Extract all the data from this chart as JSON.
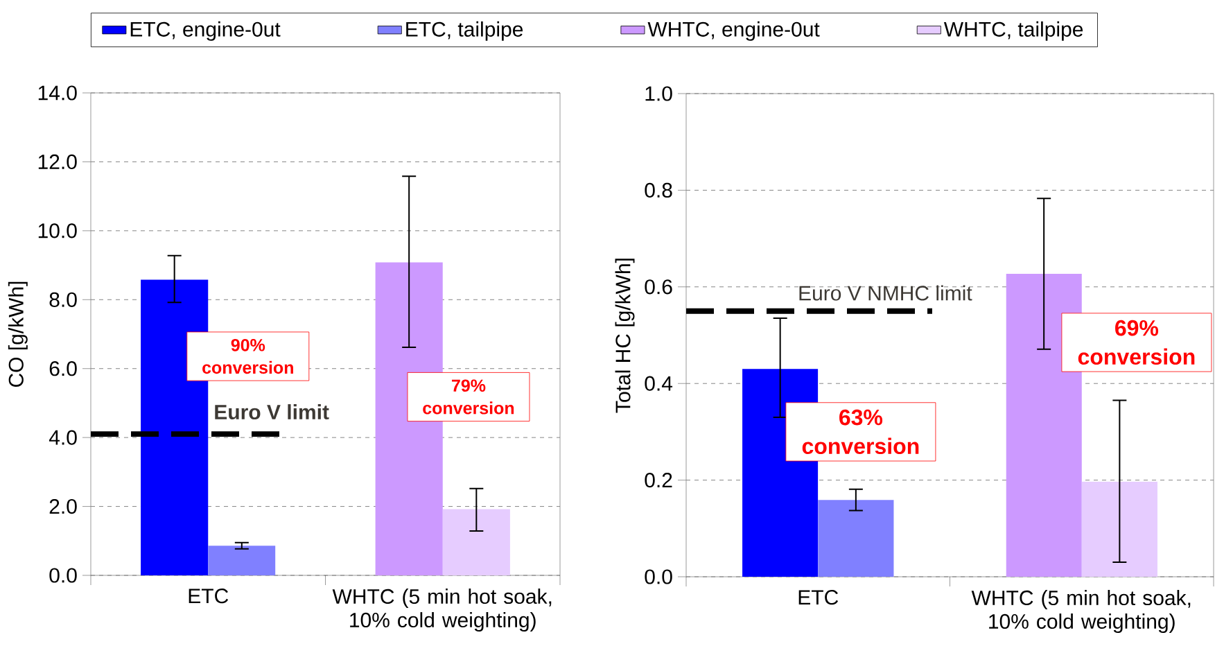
{
  "chart_data": [
    {
      "type": "bar",
      "categories": [
        "ETC",
        "WHTC (5 min hot soak, 10% cold weighting)"
      ],
      "ylabel": "CO [g/kWh]",
      "series": [
        {
          "name": "ETC, engine-0ut",
          "color": "#0000ff",
          "values": [
            8.58,
            null
          ],
          "errors": [
            [
              7.92,
              9.28
            ],
            null
          ]
        },
        {
          "name": "ETC, tailpipe",
          "color": "#8080ff",
          "values": [
            0.86,
            null
          ],
          "errors": [
            [
              0.77,
              0.95
            ],
            null
          ]
        },
        {
          "name": "WHTC, engine-0ut",
          "color": "#cc99ff",
          "values": [
            null,
            9.08
          ],
          "errors": [
            null,
            [
              6.62,
              11.58
            ]
          ]
        },
        {
          "name": "WHTC, tailpipe",
          "color": "#e6ccff",
          "values": [
            null,
            1.92
          ],
          "errors": [
            null,
            [
              1.29,
              2.52
            ]
          ]
        }
      ],
      "ylim": [
        0,
        14
      ],
      "yticks": [
        {
          "value": 0,
          "label": "0.0"
        },
        {
          "value": 2,
          "label": "2.0"
        },
        {
          "value": 4,
          "label": "4.0"
        },
        {
          "value": 6,
          "label": "6.0"
        },
        {
          "value": 8,
          "label": "8.0"
        },
        {
          "value": 10,
          "label": "10.0"
        },
        {
          "value": 12,
          "label": "12.0"
        },
        {
          "value": 14,
          "label": "14.0"
        }
      ],
      "grid": "y",
      "legend": "top",
      "ref_lines": [
        {
          "axis": "y",
          "value": 4.1,
          "label": "Euro V limit",
          "color": "#000000",
          "line_style": "dashed"
        }
      ],
      "annotations": [
        "90% conversion",
        "79% conversion"
      ]
    },
    {
      "type": "bar",
      "categories": [
        "ETC",
        "WHTC (5 min hot soak, 10% cold weighting)"
      ],
      "ylabel": "Total HC [g/kWh]",
      "series": [
        {
          "color": "#0000ff",
          "values": [
            0.43,
            null
          ],
          "errors": [
            [
              0.33,
              0.535
            ],
            null
          ]
        },
        {
          "color": "#8080ff",
          "values": [
            0.159,
            null
          ],
          "errors": [
            [
              0.137,
              0.181
            ],
            null
          ]
        },
        {
          "color": "#cc99ff",
          "values": [
            null,
            0.627
          ],
          "errors": [
            null,
            [
              0.471,
              0.783
            ]
          ]
        },
        {
          "color": "#e6ccff",
          "values": [
            null,
            0.197
          ],
          "errors": [
            null,
            [
              0.03,
              0.365
            ]
          ]
        }
      ],
      "ylim": [
        0,
        1
      ],
      "yticks": [
        {
          "value": 0,
          "label": "0.0"
        },
        {
          "value": 0.2,
          "label": "0.2"
        },
        {
          "value": 0.4,
          "label": "0.4"
        },
        {
          "value": 0.6,
          "label": "0.6"
        },
        {
          "value": 0.8,
          "label": "0.8"
        },
        {
          "value": 1,
          "label": "1.0"
        }
      ],
      "grid": "y",
      "ref_lines": [
        {
          "axis": "y",
          "value": 0.55,
          "label": "Euro V NMHC limit",
          "color": "#000000",
          "line_style": "dashed"
        }
      ],
      "annotations": [
        "63% conversion",
        "69% conversion"
      ]
    }
  ]
}
